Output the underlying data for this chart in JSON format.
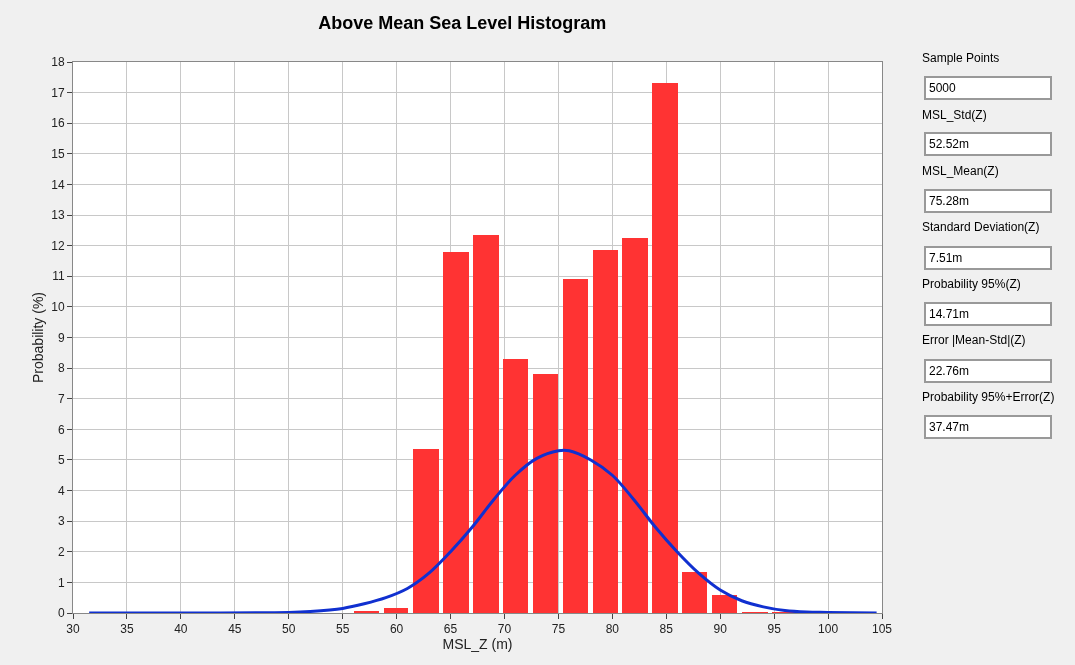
{
  "chart_data": {
    "type": "histogram",
    "title": "Above Mean Sea Level Histogram",
    "xlabel": "MSL_Z (m)",
    "ylabel": "Probability (%)",
    "xlim": [
      30,
      105
    ],
    "xticks": [
      30,
      35,
      40,
      45,
      50,
      55,
      60,
      65,
      70,
      75,
      80,
      85,
      90,
      95,
      100,
      105
    ],
    "ylim": [
      0,
      18
    ],
    "yticks": [
      0,
      1,
      2,
      3,
      4,
      5,
      6,
      7,
      8,
      9,
      10,
      11,
      12,
      13,
      14,
      15,
      16,
      17,
      18
    ],
    "grid": true,
    "series": [
      {
        "color": "#ff3333",
        "bins": [
          55.8,
          58.6,
          61.3,
          64.1,
          66.9,
          69.7,
          72.4,
          75.2,
          78.0,
          80.7,
          83.5,
          86.3,
          89.0,
          91.8,
          94.6,
          97.4
        ],
        "values": [
          0.05,
          0.15,
          5.35,
          11.8,
          12.35,
          8.3,
          7.8,
          10.9,
          11.85,
          12.25,
          17.3,
          1.35,
          0.6,
          0.03,
          0.02
        ]
      },
      {
        "type": "line",
        "color": "#1030d0",
        "x": [
          31.5,
          50,
          52,
          55,
          57,
          59,
          61,
          63,
          65,
          67,
          69,
          71,
          73,
          75,
          76,
          78,
          80,
          82,
          84,
          86,
          88,
          90,
          92,
          94,
          96,
          98,
          100,
          104.5
        ],
        "values": [
          0,
          0.02,
          0.05,
          0.15,
          0.3,
          0.5,
          0.8,
          1.3,
          2.0,
          2.8,
          3.7,
          4.5,
          5.05,
          5.3,
          5.3,
          5.0,
          4.5,
          3.7,
          2.8,
          2.0,
          1.3,
          0.75,
          0.4,
          0.2,
          0.08,
          0.03,
          0.02,
          0
        ]
      }
    ],
    "annotations": [
      "Sample Points",
      "5000",
      "MSL_Std(Z)",
      "52.52m",
      "MSL_Mean(Z)",
      "75.28m",
      "Standard Deviation(Z)",
      "7.51m",
      "Probability 95%(Z)",
      "14.71m",
      "Error |Mean-Std|(Z)",
      "22.76m",
      "Probability 95%+Error(Z)",
      "37.47m"
    ]
  }
}
